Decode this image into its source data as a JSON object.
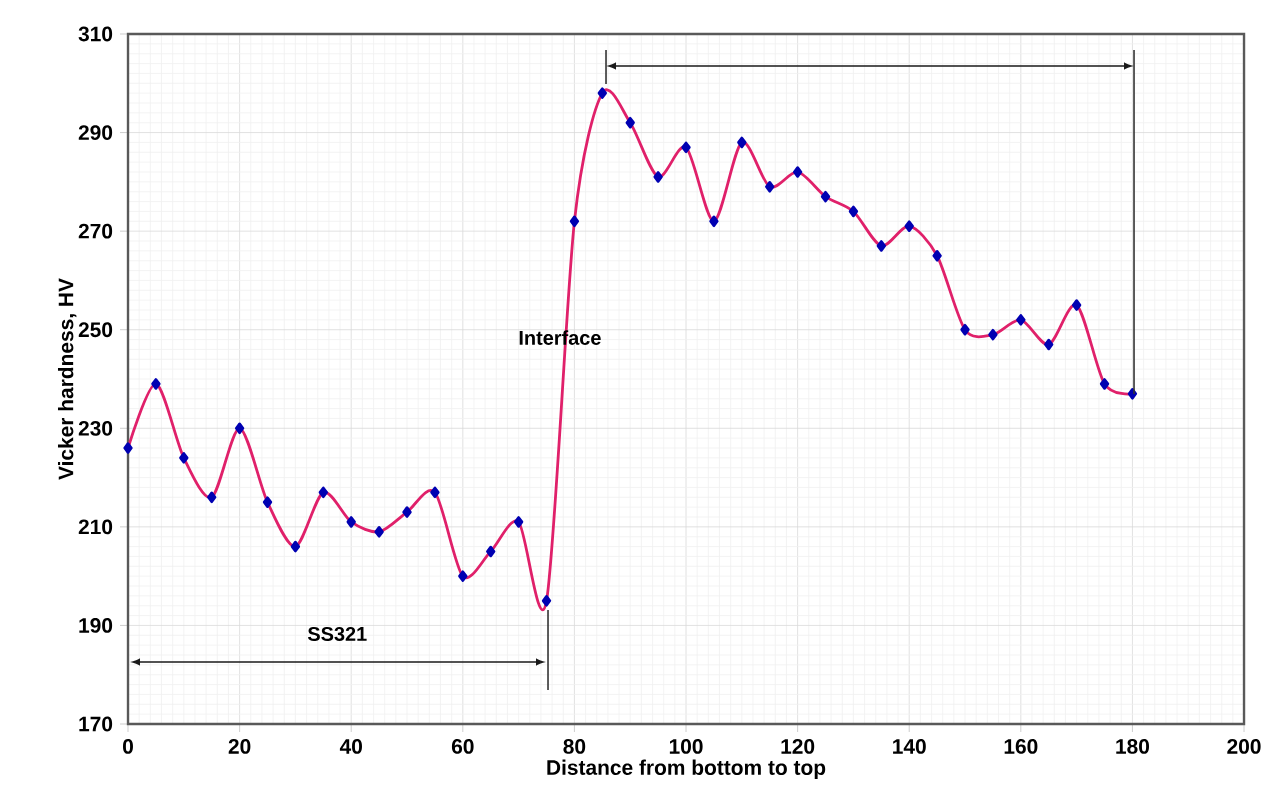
{
  "chart_data": {
    "type": "line",
    "xlabel": "Distance from bottom to top",
    "ylabel": "Vicker hardness, HV",
    "x": [
      0,
      5,
      10,
      15,
      20,
      25,
      30,
      35,
      40,
      45,
      50,
      55,
      60,
      65,
      70,
      75,
      80,
      85,
      90,
      95,
      100,
      105,
      110,
      115,
      120,
      125,
      130,
      135,
      140,
      145,
      150,
      155,
      160,
      165,
      170,
      175,
      180
    ],
    "series": [
      {
        "color": "#e0206a",
        "values": [
          226,
          239,
          224,
          216,
          230,
          215,
          206,
          217,
          211,
          209,
          213,
          217,
          200,
          205,
          211,
          195,
          272,
          298,
          292,
          281,
          287,
          272,
          288,
          279,
          282,
          277,
          274,
          267,
          271,
          265,
          250,
          249,
          252,
          247,
          255,
          239,
          237
        ]
      }
    ],
    "xlim": [
      0,
      200
    ],
    "xticks": [
      0,
      20,
      40,
      60,
      80,
      100,
      120,
      140,
      160,
      180,
      200
    ],
    "ylim": [
      170,
      310
    ],
    "yticks": [
      170,
      190,
      210,
      230,
      250,
      270,
      290,
      310
    ],
    "grid": true,
    "marker": "diamond",
    "line_style": "solid",
    "annotations": [
      "Interface",
      "SS321"
    ]
  }
}
